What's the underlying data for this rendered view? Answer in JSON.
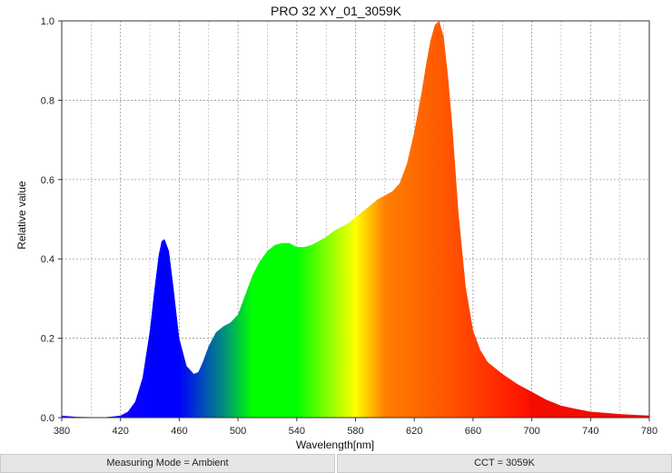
{
  "chart_data": {
    "type": "area",
    "title": "PRO 32 XY_01_3059K",
    "xlabel": "Wavelength[nm]",
    "ylabel": "Relative value",
    "xlim": [
      380,
      780
    ],
    "ylim": [
      0,
      1.0
    ],
    "x_ticks": [
      "380",
      "420",
      "460",
      "500",
      "540",
      "580",
      "620",
      "660",
      "700",
      "740",
      "780"
    ],
    "y_ticks": [
      "0.0",
      "0.2",
      "0.4",
      "0.6",
      "0.8",
      "1.0"
    ],
    "grid": true,
    "fill": "visible-spectrum gradient",
    "x": [
      380,
      390,
      400,
      410,
      420,
      425,
      430,
      435,
      440,
      443,
      446,
      448,
      450,
      453,
      456,
      460,
      465,
      470,
      473,
      476,
      480,
      485,
      490,
      495,
      500,
      505,
      510,
      515,
      520,
      525,
      530,
      535,
      540,
      545,
      550,
      555,
      560,
      565,
      570,
      575,
      580,
      585,
      590,
      595,
      600,
      605,
      610,
      615,
      620,
      625,
      628,
      631,
      634,
      637,
      640,
      643,
      646,
      650,
      655,
      660,
      665,
      670,
      680,
      690,
      700,
      710,
      720,
      730,
      740,
      750,
      760,
      770,
      780
    ],
    "y": [
      0.005,
      0.002,
      0.001,
      0.001,
      0.005,
      0.015,
      0.04,
      0.1,
      0.22,
      0.32,
      0.41,
      0.445,
      0.45,
      0.42,
      0.33,
      0.2,
      0.13,
      0.11,
      0.115,
      0.14,
      0.18,
      0.215,
      0.23,
      0.24,
      0.26,
      0.31,
      0.36,
      0.395,
      0.42,
      0.435,
      0.44,
      0.44,
      0.43,
      0.43,
      0.435,
      0.445,
      0.455,
      0.47,
      0.48,
      0.49,
      0.505,
      0.52,
      0.535,
      0.55,
      0.56,
      0.57,
      0.59,
      0.64,
      0.72,
      0.82,
      0.89,
      0.95,
      0.99,
      1.0,
      0.96,
      0.86,
      0.73,
      0.52,
      0.33,
      0.22,
      0.17,
      0.14,
      0.11,
      0.085,
      0.065,
      0.045,
      0.03,
      0.022,
      0.015,
      0.012,
      0.009,
      0.007,
      0.005
    ]
  },
  "status_bar": {
    "measuring_mode": "Measuring Mode = Ambient",
    "cct": "CCT = 3059K"
  }
}
